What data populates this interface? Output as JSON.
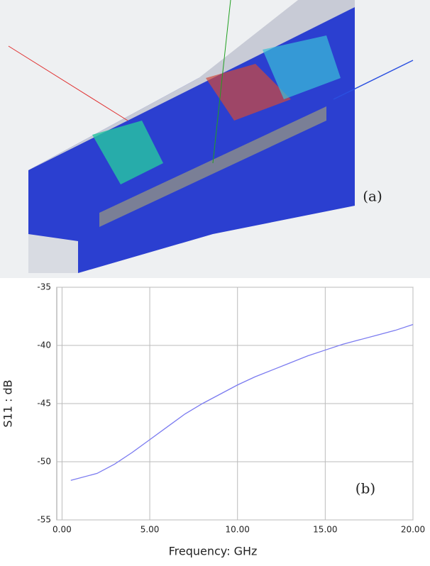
{
  "panel_a": {
    "label": "(a)"
  },
  "chart_data": {
    "type": "line",
    "x_label": "Frequency: GHz",
    "y_label": "S11 : dB",
    "annotation": "(b)",
    "x": [
      0.5,
      2,
      3,
      4,
      5,
      6,
      7,
      8,
      9,
      10,
      11,
      12,
      13,
      14,
      15,
      16,
      17,
      18,
      19,
      20
    ],
    "series": [
      {
        "color": "#7b7bf0",
        "values": [
          -51.6,
          -51.0,
          -50.2,
          -49.2,
          -48.1,
          -47.0,
          -45.9,
          -45.0,
          -44.2,
          -43.4,
          -42.7,
          -42.1,
          -41.5,
          -40.9,
          -40.4,
          -39.9,
          -39.5,
          -39.1,
          -38.7,
          -38.2
        ]
      }
    ],
    "xlim": [
      -0.3,
      20
    ],
    "xticks": [
      {
        "value": 0,
        "label": "0.00"
      },
      {
        "value": 5,
        "label": "5.00"
      },
      {
        "value": 10,
        "label": "10.00"
      },
      {
        "value": 15,
        "label": "15.00"
      },
      {
        "value": 20,
        "label": "20.00"
      }
    ],
    "ylim": [
      -55,
      -35
    ],
    "yticks": [
      -55,
      -50,
      -45,
      -40,
      -35
    ],
    "grid": true
  }
}
